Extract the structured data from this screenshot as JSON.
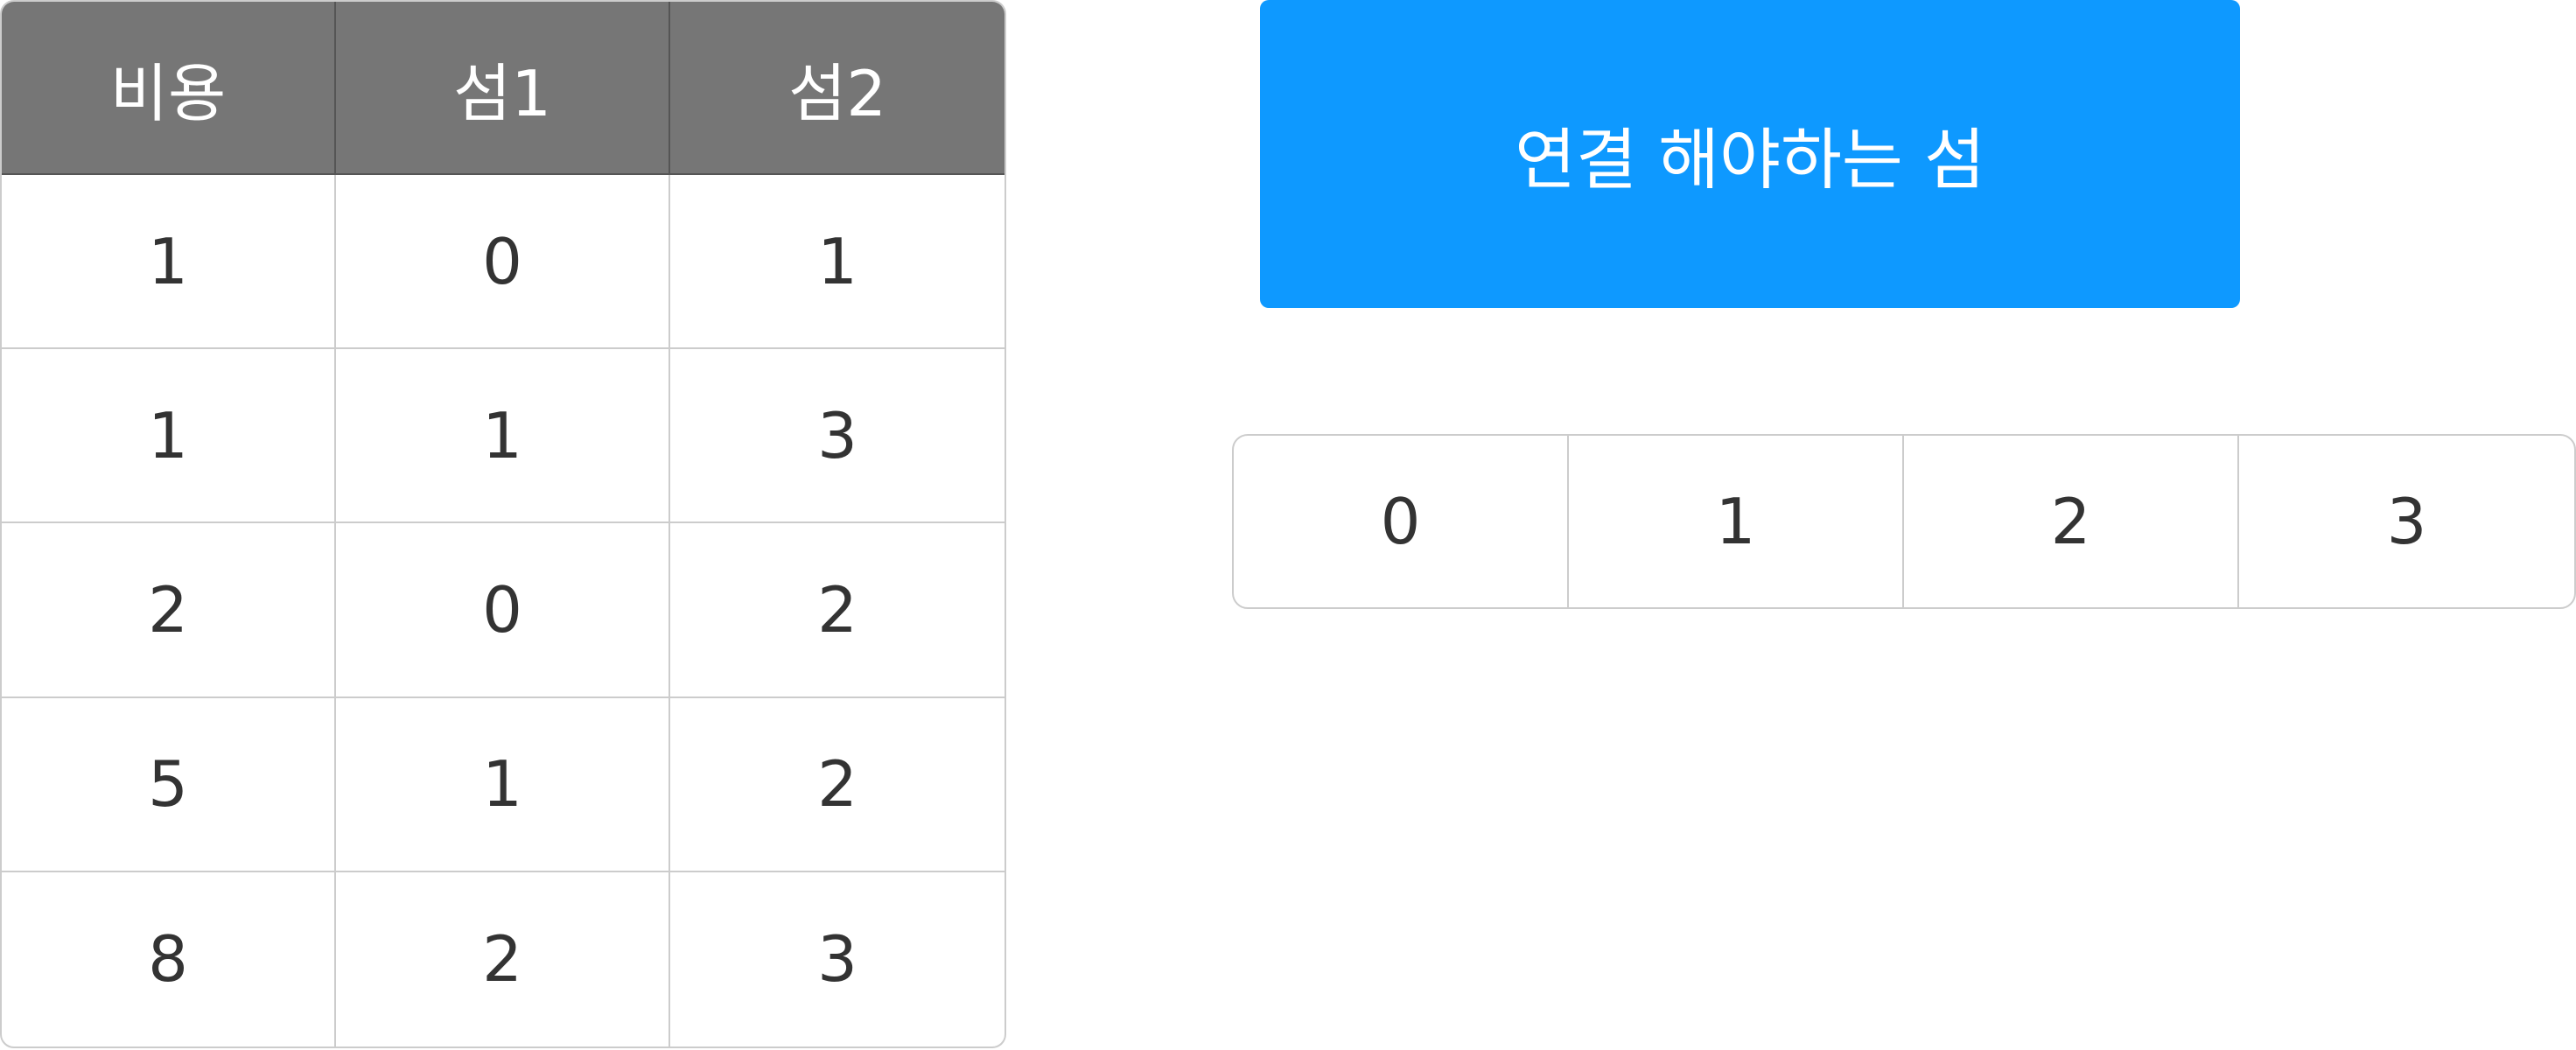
{
  "edge_table": {
    "headers": [
      "비용",
      "섬1",
      "섬2"
    ],
    "rows": [
      [
        "1",
        "0",
        "1"
      ],
      [
        "1",
        "1",
        "3"
      ],
      [
        "2",
        "0",
        "2"
      ],
      [
        "5",
        "1",
        "2"
      ],
      [
        "8",
        "2",
        "3"
      ]
    ]
  },
  "title_box": {
    "label": "연결 해야하는 섬"
  },
  "islands": [
    "0",
    "1",
    "2",
    "3"
  ]
}
